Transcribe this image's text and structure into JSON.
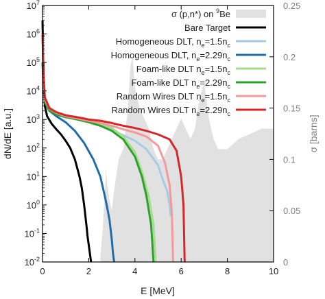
{
  "chart_data": {
    "type": "line",
    "xlabel": "E [MeV]",
    "ylabel": "dN/dE [a.u.]",
    "y2label": "σ [barns]",
    "xlim": [
      0,
      10
    ],
    "ylim": [
      0.01,
      10000000
    ],
    "y2lim": [
      0,
      0.25
    ],
    "yscale": "log",
    "grid": false,
    "legend_position": "top-right",
    "x_ticks": [
      "0",
      "2",
      "4",
      "6",
      "8",
      "10"
    ],
    "y_ticks": [
      {
        "value": 0.01,
        "base": "10",
        "exp": "-2"
      },
      {
        "value": 0.1,
        "base": "10",
        "exp": "-1"
      },
      {
        "value": 1,
        "base": "10",
        "exp": "0"
      },
      {
        "value": 10,
        "base": "10",
        "exp": "1"
      },
      {
        "value": 100,
        "base": "10",
        "exp": "2"
      },
      {
        "value": 1000,
        "base": "10",
        "exp": "3"
      },
      {
        "value": 10000,
        "base": "10",
        "exp": "4"
      },
      {
        "value": 100000,
        "base": "10",
        "exp": "5"
      },
      {
        "value": 1000000,
        "base": "10",
        "exp": "6"
      },
      {
        "value": 10000000,
        "base": "10",
        "exp": "7"
      }
    ],
    "y2_ticks": [
      "0",
      "0.05",
      "0.1",
      "0.15",
      "0.2",
      "0.25"
    ],
    "cross_section": {
      "legend_parts": [
        "σ (p,n*) on ",
        "9",
        "Be"
      ],
      "color": "#e1e1e1",
      "x": [
        2.5,
        2.6,
        2.7,
        2.75,
        2.8,
        2.9,
        3.0,
        3.1,
        3.2,
        3.3,
        3.5,
        3.6,
        3.7,
        3.8,
        3.9,
        4.0,
        4.2,
        4.4,
        4.6,
        4.8,
        5.0,
        5.2,
        5.4,
        5.6,
        5.8,
        6.0,
        6.2,
        6.4,
        6.6,
        6.8,
        7.0,
        7.2,
        7.4,
        7.6,
        7.8,
        8.0,
        8.5,
        9.0,
        9.5,
        10.0
      ],
      "y": [
        0.005,
        0.03,
        0.07,
        0.09,
        0.075,
        0.06,
        0.05,
        0.07,
        0.085,
        0.1,
        0.11,
        0.13,
        0.15,
        0.19,
        0.2,
        0.17,
        0.15,
        0.14,
        0.13,
        0.11,
        0.1,
        0.1,
        0.11,
        0.12,
        0.13,
        0.14,
        0.13,
        0.12,
        0.13,
        0.16,
        0.175,
        0.14,
        0.12,
        0.11,
        0.11,
        0.11,
        0.12,
        0.125,
        0.13,
        0.13
      ]
    },
    "series": [
      {
        "name_parts": [
          "Bare Target"
        ],
        "color": "#000000",
        "x": [
          0.0,
          0.05,
          0.1,
          0.2,
          0.4,
          0.6,
          0.8,
          1.0,
          1.2,
          1.4,
          1.6,
          1.7,
          1.8,
          1.9,
          1.95,
          2.0,
          2.05,
          2.1
        ],
        "y": [
          3000000,
          15000,
          3000,
          1300,
          700,
          450,
          300,
          180,
          100,
          40,
          10,
          4,
          1,
          0.2,
          0.08,
          0.04,
          0.02,
          0.01
        ]
      },
      {
        "name_parts": [
          "Homogeneous DLT, n",
          "e",
          "=1.5n",
          "c"
        ],
        "color": "#a6cbe3",
        "x": [
          0.0,
          0.05,
          0.1,
          0.3,
          0.6,
          1.0,
          1.5,
          2.0,
          2.5,
          3.0,
          3.5,
          4.0,
          4.5,
          5.0,
          5.2,
          5.4,
          5.5,
          5.55
        ],
        "y": [
          1000000,
          30000,
          6000,
          2500,
          1700,
          1300,
          1000,
          800,
          600,
          420,
          280,
          180,
          90,
          25,
          8,
          3,
          1,
          0.4
        ]
      },
      {
        "name_parts": [
          "Homogeneous DLT, n",
          "e",
          "=2.29n",
          "c"
        ],
        "color": "#1f6ca8",
        "x": [
          0.0,
          0.05,
          0.1,
          0.3,
          0.6,
          1.0,
          1.4,
          1.8,
          2.2,
          2.5,
          2.7,
          2.8,
          2.9,
          3.0,
          3.05,
          3.1
        ],
        "y": [
          100000,
          12000,
          4000,
          2000,
          1300,
          800,
          400,
          150,
          40,
          10,
          2,
          0.8,
          0.3,
          0.06,
          0.02,
          0.01
        ]
      },
      {
        "name_parts": [
          "Foam-like DLT n",
          "e",
          "=1.5n",
          "c"
        ],
        "color": "#a6dc8c",
        "x": [
          0.0,
          0.05,
          0.1,
          0.3,
          0.6,
          1.0,
          1.5,
          2.0,
          2.5,
          3.0,
          3.5,
          4.0,
          4.3,
          4.6,
          4.8,
          4.85,
          4.9
        ],
        "y": [
          1000000,
          25000,
          5000,
          2400,
          1700,
          1300,
          1100,
          900,
          700,
          500,
          250,
          70,
          15,
          2,
          0.2,
          0.05,
          0.01
        ]
      },
      {
        "name_parts": [
          "Foam-like DLT n",
          "e",
          "=2.29n",
          "c"
        ],
        "color": "#2ea02e",
        "x": [
          0.0,
          0.05,
          0.1,
          0.3,
          0.6,
          1.0,
          1.5,
          2.0,
          2.5,
          3.0,
          3.5,
          4.0,
          4.3,
          4.5,
          4.7,
          4.75,
          4.8
        ],
        "y": [
          100000,
          12000,
          4000,
          2000,
          1500,
          1200,
          1000,
          800,
          600,
          400,
          200,
          50,
          10,
          2,
          0.2,
          0.05,
          0.01
        ]
      },
      {
        "name_parts": [
          "Random Wires DLT n",
          "e",
          "=1.5n",
          "c"
        ],
        "color": "#f4999a",
        "x": [
          0.0,
          0.05,
          0.1,
          0.3,
          0.6,
          1.0,
          1.5,
          2.0,
          2.5,
          3.0,
          3.5,
          4.0,
          4.5,
          5.0,
          5.3,
          5.5,
          5.6,
          5.65
        ],
        "y": [
          1000000,
          25000,
          5000,
          2400,
          1700,
          1300,
          1100,
          900,
          750,
          600,
          450,
          350,
          250,
          120,
          30,
          5,
          0.5,
          0.01
        ]
      },
      {
        "name_parts": [
          "Random Wires DLT n",
          "e",
          "=2.29n",
          "c"
        ],
        "color": "#d62728",
        "x": [
          0.0,
          0.05,
          0.1,
          0.3,
          0.6,
          1.0,
          1.5,
          2.0,
          2.5,
          3.0,
          3.5,
          4.0,
          4.5,
          5.0,
          5.5,
          5.8,
          6.0,
          6.1,
          6.15
        ],
        "y": [
          1000000,
          30000,
          6000,
          2500,
          1800,
          1400,
          1200,
          1000,
          900,
          750,
          600,
          500,
          400,
          300,
          200,
          80,
          10,
          1,
          0.01
        ]
      }
    ]
  }
}
